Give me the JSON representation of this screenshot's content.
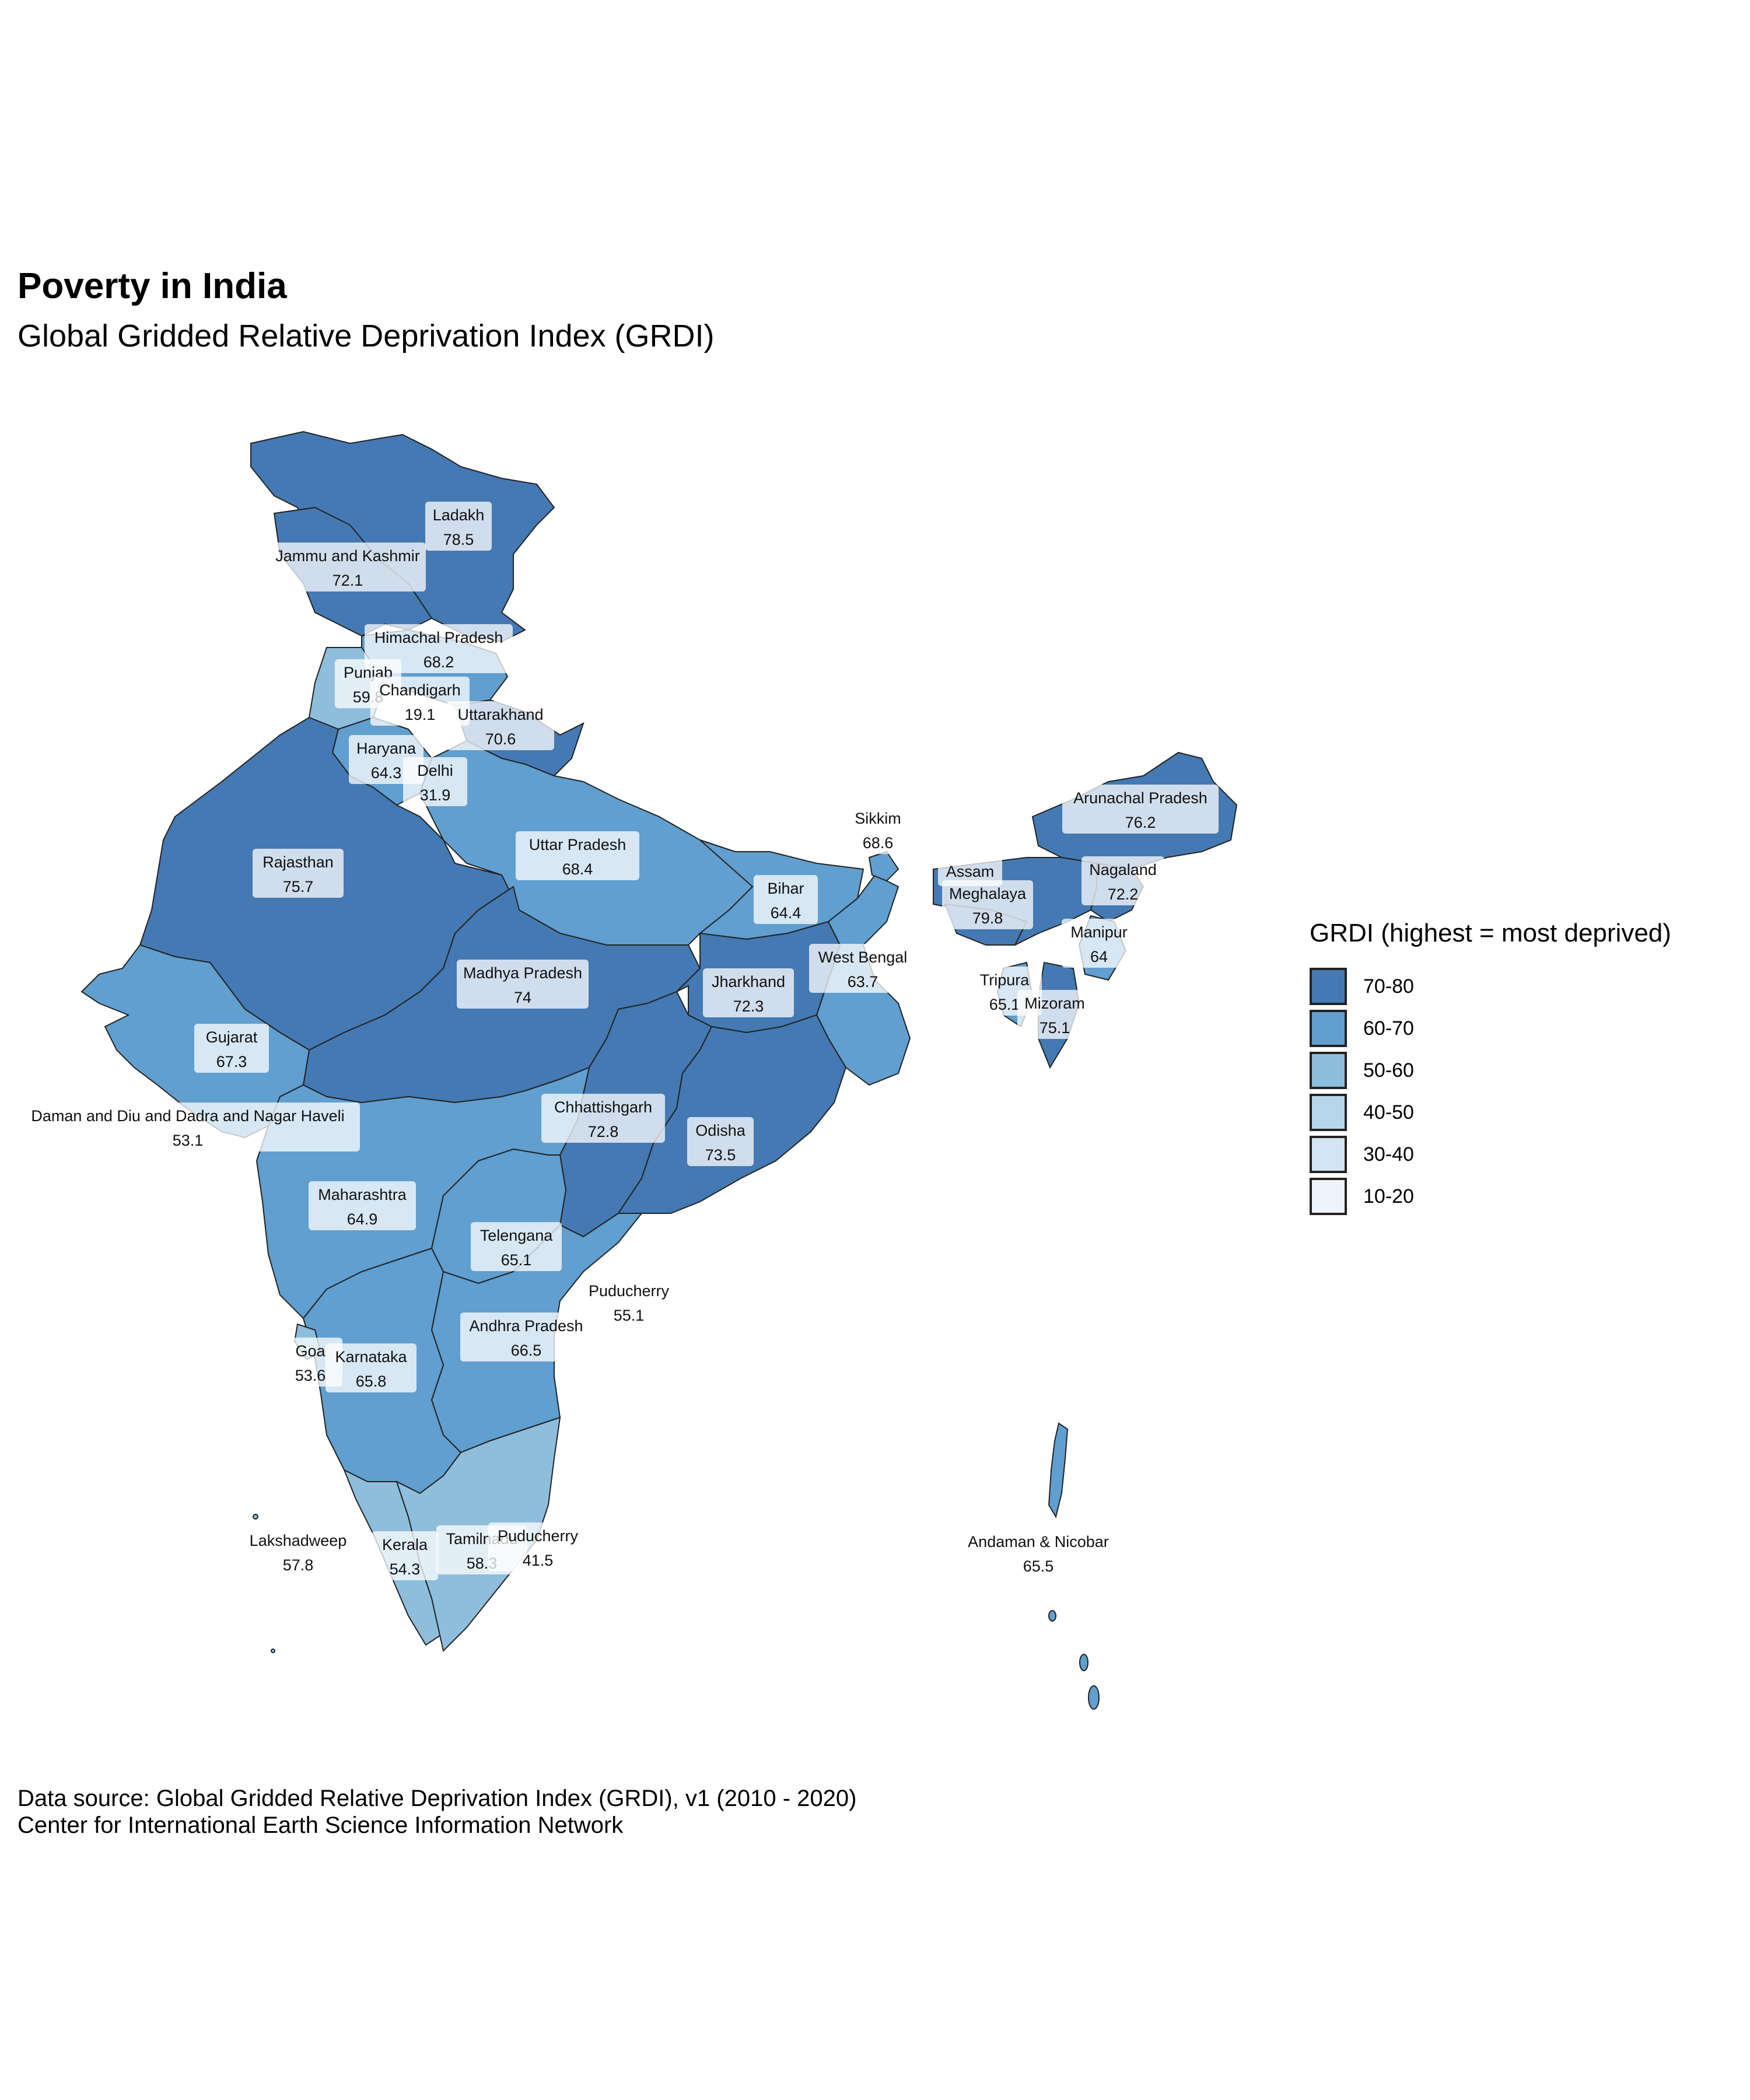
{
  "title": "Poverty in India",
  "subtitle": "Global Gridded Relative Deprivation Index (GRDI)",
  "legend": {
    "title": "GRDI (highest = most deprived)",
    "items": [
      {
        "label": "70-80",
        "color": "#4479b3"
      },
      {
        "label": "60-70",
        "color": "#609fcf"
      },
      {
        "label": "50-60",
        "color": "#8fbedd"
      },
      {
        "label": "40-50",
        "color": "#b8d6ea"
      },
      {
        "label": "30-40",
        "color": "#d3e4f3"
      },
      {
        "label": "10-20",
        "color": "#eef4fb"
      }
    ]
  },
  "regions": [
    {
      "name": "Ladakh",
      "value": "78.5"
    },
    {
      "name": "Jammu and Kashmir",
      "value": "72.1"
    },
    {
      "name": "Himachal Pradesh",
      "value": "68.2"
    },
    {
      "name": "Punjab",
      "value": "59.8"
    },
    {
      "name": "Chandigarh",
      "value": "19.1"
    },
    {
      "name": "Uttarakhand",
      "value": "70.6"
    },
    {
      "name": "Haryana",
      "value": "64.3"
    },
    {
      "name": "Delhi",
      "value": "31.9"
    },
    {
      "name": "Rajasthan",
      "value": "75.7"
    },
    {
      "name": "Uttar Pradesh",
      "value": "68.4"
    },
    {
      "name": "Sikkim",
      "value": "68.6"
    },
    {
      "name": "Arunachal Pradesh",
      "value": "76.2"
    },
    {
      "name": "Bihar",
      "value": "64.4"
    },
    {
      "name": "Assam",
      "value": ""
    },
    {
      "name": "Meghalaya",
      "value": "79.8"
    },
    {
      "name": "Nagaland",
      "value": "72.2"
    },
    {
      "name": "Manipur",
      "value": "64"
    },
    {
      "name": "West Bengal",
      "value": "63.7"
    },
    {
      "name": "Jharkhand",
      "value": "72.3"
    },
    {
      "name": "Tripura",
      "value": "65.1"
    },
    {
      "name": "Mizoram",
      "value": "75.1"
    },
    {
      "name": "Madhya Pradesh",
      "value": "74"
    },
    {
      "name": "Gujarat",
      "value": "67.3"
    },
    {
      "name": "Daman and Diu and Dadra and Nagar Haveli",
      "value": "53.1"
    },
    {
      "name": "Chhattishgarh",
      "value": "72.8"
    },
    {
      "name": "Odisha",
      "value": "73.5"
    },
    {
      "name": "Maharashtra",
      "value": "64.9"
    },
    {
      "name": "Telengana",
      "value": "65.1"
    },
    {
      "name": "Puducherry",
      "value": "55.1"
    },
    {
      "name": "Andhra Pradesh",
      "value": "66.5"
    },
    {
      "name": "Goa",
      "value": "53.6"
    },
    {
      "name": "Karnataka",
      "value": "65.8"
    },
    {
      "name": "Lakshadweep",
      "value": "57.8"
    },
    {
      "name": "Kerala",
      "value": "54.3"
    },
    {
      "name": "Tamilnadu",
      "value": "58.3"
    },
    {
      "name": "Puducherry",
      "value": "41.5"
    },
    {
      "name": "Andaman & Nicobar",
      "value": "65.5"
    }
  ],
  "caption": {
    "line1": "Data source: Global Gridded Relative Deprivation Index (GRDI), v1 (2010 - 2020)",
    "line2": "Center for International Earth Science Information Network"
  }
}
